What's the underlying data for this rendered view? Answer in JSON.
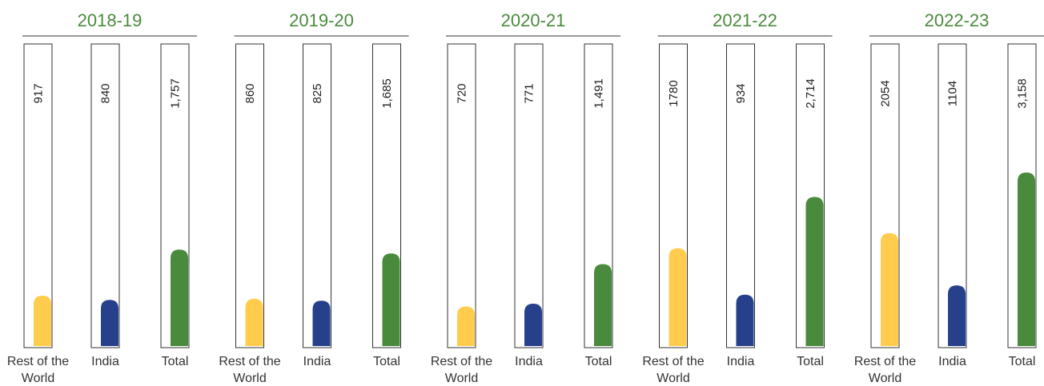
{
  "chart_data": {
    "type": "bar",
    "categories": [
      "Rest of the World",
      "India",
      "Total"
    ],
    "series_colors": [
      "#ffcc4d",
      "#26408b",
      "#4a8a3c"
    ],
    "title_color": "#4a8a3c",
    "groups": [
      {
        "title": "2018-19",
        "values": [
          917,
          840,
          1757
        ],
        "labels": [
          "917",
          "840",
          "1,757"
        ]
      },
      {
        "title": "2019-20",
        "values": [
          860,
          825,
          1685
        ],
        "labels": [
          "860",
          "825",
          "1,685"
        ]
      },
      {
        "title": "2020-21",
        "values": [
          720,
          771,
          1491
        ],
        "labels": [
          "720",
          "771",
          "1,491"
        ]
      },
      {
        "title": "2021-22",
        "values": [
          1780,
          934,
          2714
        ],
        "labels": [
          "1780",
          "934",
          "2,714"
        ]
      },
      {
        "title": "2022-23",
        "values": [
          2054,
          1104,
          3158
        ],
        "labels": [
          "2054",
          "1104",
          "3,158"
        ]
      }
    ]
  }
}
